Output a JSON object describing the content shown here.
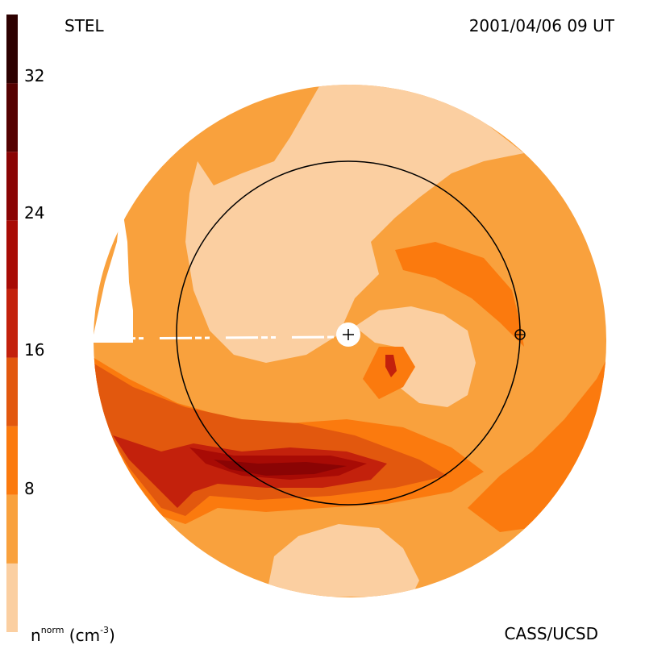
{
  "header": {
    "source": "STEL",
    "timestamp": "2001/04/06 09 UT"
  },
  "footer": {
    "credit": "CASS/UCSD",
    "units_prefix": "n",
    "units_sup": "norm",
    "units_suffix": " (cm",
    "units_exp": "-3",
    "units_close": ")"
  },
  "colorbar": {
    "ticks": [
      "32",
      "24",
      "16",
      "8"
    ],
    "levels": [
      {
        "from": 0,
        "to": 4,
        "color": "#fbcfa1"
      },
      {
        "from": 4,
        "to": 8,
        "color": "#f9a13d"
      },
      {
        "from": 8,
        "to": 12,
        "color": "#fb7a0e"
      },
      {
        "from": 12,
        "to": 16,
        "color": "#e2580e"
      },
      {
        "from": 16,
        "to": 20,
        "color": "#c3210c"
      },
      {
        "from": 20,
        "to": 24,
        "color": "#a80b05"
      },
      {
        "from": 24,
        "to": 28,
        "color": "#8a0404"
      },
      {
        "from": 28,
        "to": 32,
        "color": "#550101"
      },
      {
        "from": 32,
        "to": 36,
        "color": "#2d0000"
      }
    ]
  },
  "markers": {
    "sun": "sun-marker-icon",
    "earth": "earth-marker-icon"
  }
}
